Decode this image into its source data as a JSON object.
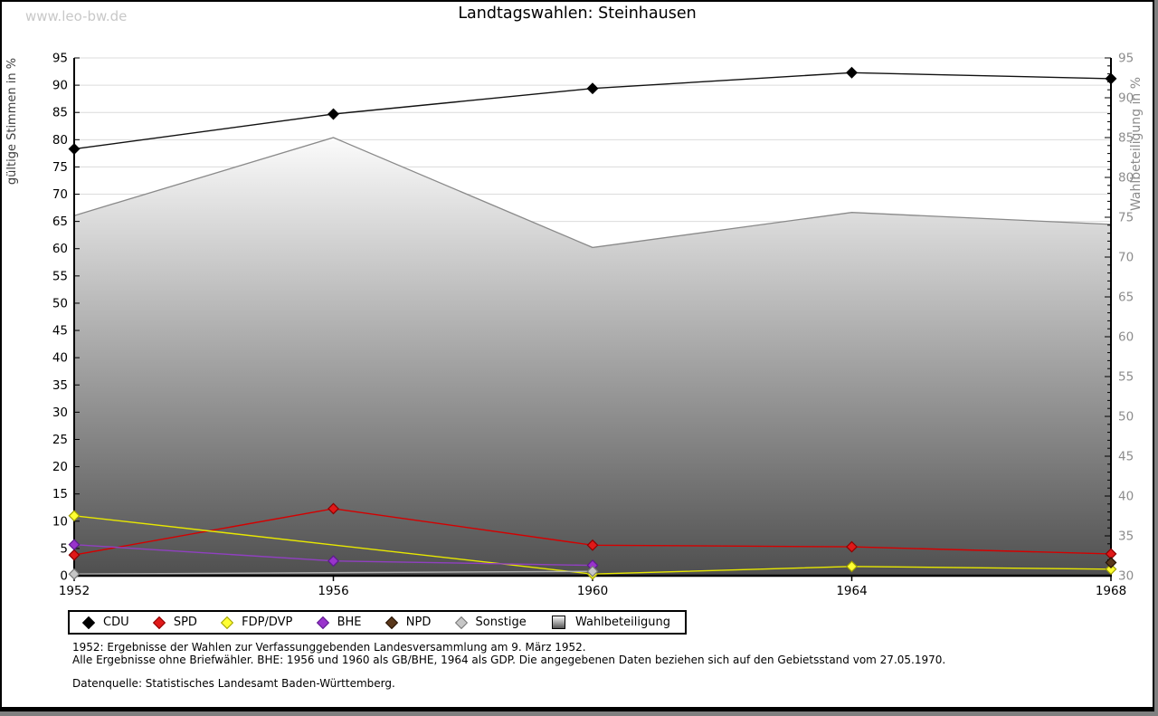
{
  "watermark": "www.leo-bw.de",
  "title": "Landtagswahlen: Steinhausen",
  "colors": {
    "grid": "#dcdcdc",
    "axis": "#000000",
    "right_axis_text": "#8c8c8c",
    "left_axis_title": "#3c3c3c",
    "area_gradient_top": "#fbfbfb",
    "area_gradient_bottom": "#4f4f4f",
    "area_outline": "#8a8a8a",
    "watermark": "#c8c8c8"
  },
  "chart_data": {
    "type": "line",
    "title": "Landtagswahlen: Steinhausen",
    "x": [
      1952,
      1956,
      1960,
      1964,
      1968
    ],
    "left_axis": {
      "label": "gültige Stimmen in %",
      "min": 0,
      "max": 95,
      "step": 5,
      "ticks": [
        0,
        5,
        10,
        15,
        20,
        25,
        30,
        35,
        40,
        45,
        50,
        55,
        60,
        65,
        70,
        75,
        80,
        85,
        90,
        95
      ]
    },
    "right_axis": {
      "label": "Wahlbeteiligung in %",
      "min": 30,
      "max": 95,
      "step": 5,
      "ticks": [
        30,
        35,
        40,
        45,
        50,
        55,
        60,
        65,
        70,
        75,
        80,
        85,
        90,
        95
      ]
    },
    "grid": "horizontal",
    "legend_position": "bottom",
    "series": [
      {
        "name": "CDU",
        "axis": "left",
        "color": "#111111",
        "fill": "#000000",
        "stroke": "#000000",
        "values": [
          78.3,
          84.7,
          89.4,
          92.3,
          91.2
        ]
      },
      {
        "name": "SPD",
        "axis": "left",
        "color": "#d40000",
        "fill": "#e01919",
        "stroke": "#8b0000",
        "values": [
          3.8,
          12.3,
          5.6,
          5.3,
          4.0
        ]
      },
      {
        "name": "FDP/DVP",
        "axis": "left",
        "color": "#e8e800",
        "fill": "#ffff33",
        "stroke": "#a0a000",
        "values": [
          11.0,
          null,
          0.3,
          1.7,
          1.2
        ]
      },
      {
        "name": "BHE",
        "axis": "left",
        "color": "#9040c0",
        "fill": "#9933cc",
        "stroke": "#5c1a8e",
        "values": [
          5.7,
          2.7,
          1.9,
          null,
          null
        ]
      },
      {
        "name": "NPD",
        "axis": "left",
        "color": "#5a381c",
        "fill": "#5a381c",
        "stroke": "#241104",
        "values": [
          null,
          null,
          null,
          null,
          2.4
        ]
      },
      {
        "name": "Sonstige",
        "axis": "left",
        "color": "#b4b4b4",
        "fill": "#c6c6c6",
        "stroke": "#777777",
        "values": [
          0.3,
          null,
          0.8,
          null,
          null
        ]
      },
      {
        "name": "Wahlbeteiligung",
        "axis": "right",
        "type": "area",
        "values": [
          75.2,
          85.0,
          71.2,
          75.6,
          74.1
        ]
      }
    ]
  },
  "footnotes": [
    "1952: Ergebnisse der Wahlen zur Verfassunggebenden Landesversammlung am 9. März 1952.",
    "Alle Ergebnisse ohne Briefwähler. BHE: 1956 und 1960 als GB/BHE, 1964 als GDP. Die angegebenen Daten beziehen sich auf den Gebietsstand vom 27.05.1970.",
    "Datenquelle: Statistisches Landesamt Baden-Württemberg."
  ]
}
